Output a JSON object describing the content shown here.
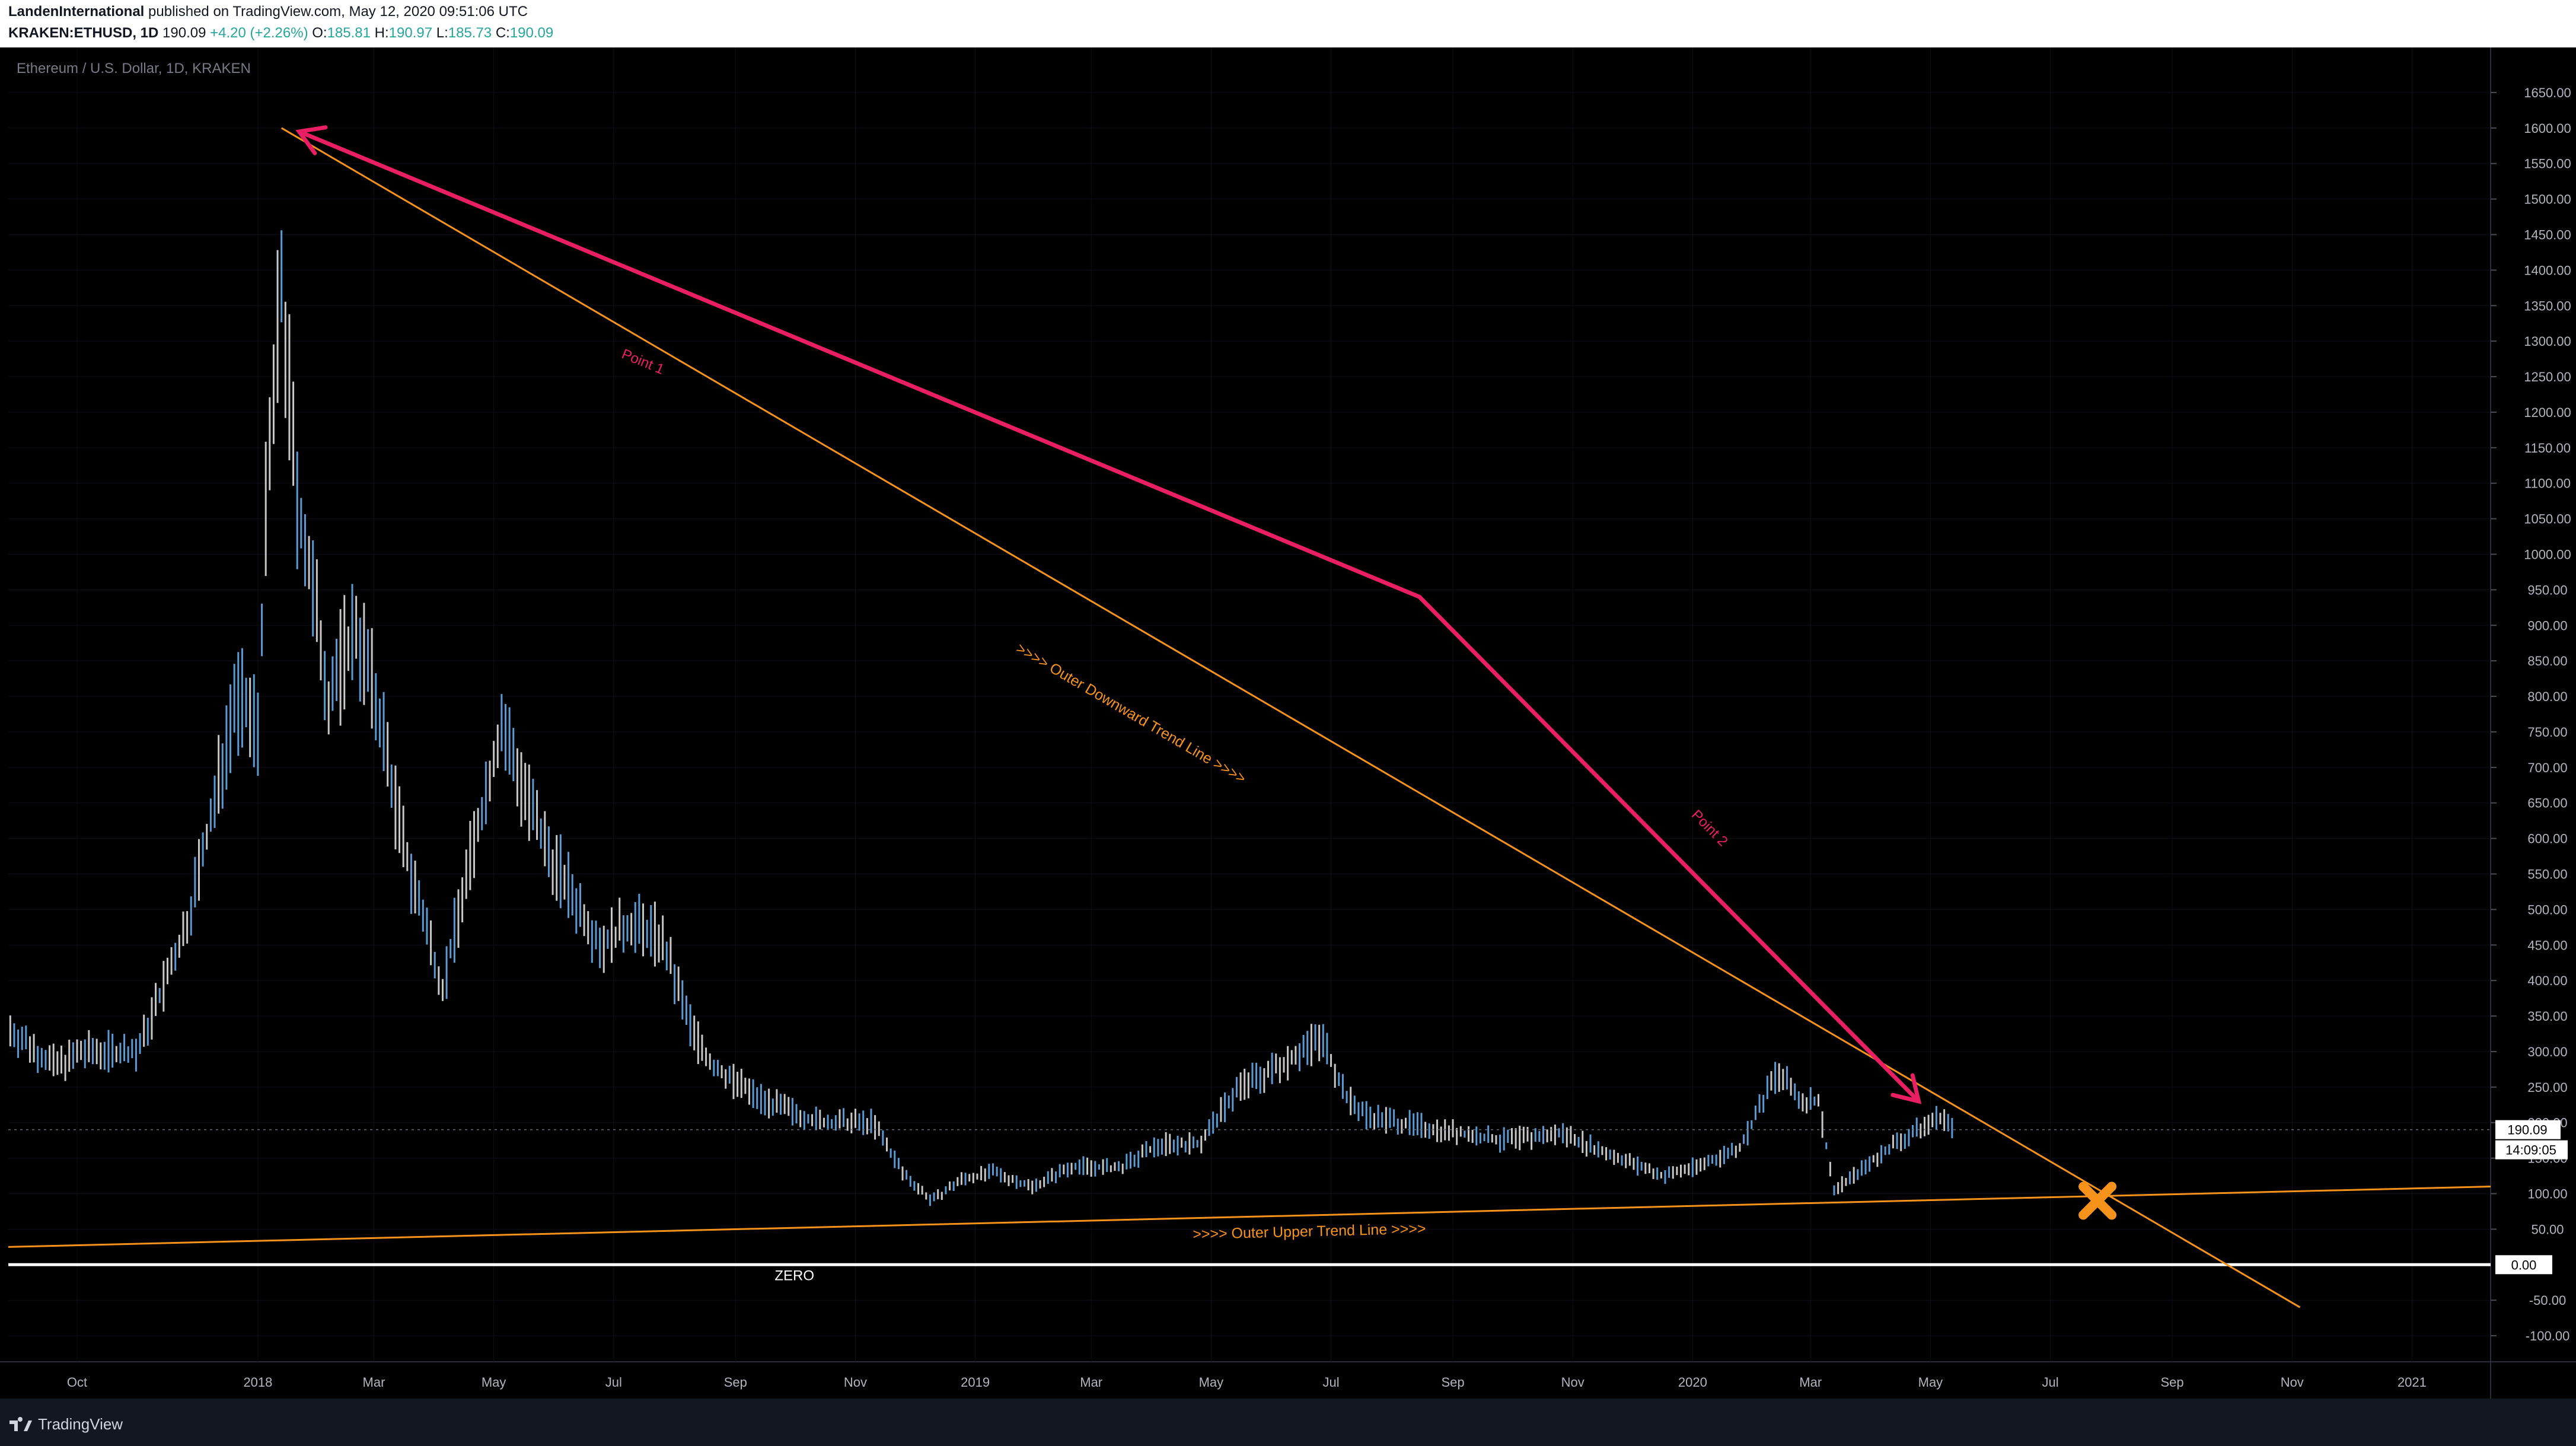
{
  "header": {
    "publisher": "LandenInternational",
    "published_text": "published on TradingView.com, May 12, 2020 09:51:06 UTC",
    "symbol": "KRAKEN:ETHUSD, 1D",
    "last": "190.09",
    "change": "+4.20 (+2.26%)",
    "o_label": "O:",
    "o_value": "185.81",
    "h_label": "H:",
    "h_value": "190.97",
    "l_label": "L:",
    "l_value": "185.73",
    "c_label": "C:",
    "c_value": "190.09"
  },
  "chart_title": "Ethereum / U.S. Dollar, 1D, KRAKEN",
  "footer": {
    "brand": "TradingView"
  },
  "colors": {
    "background": "#000000",
    "frame": "#131722",
    "candle_up": "#5b9bd5",
    "candle_down": "#c8c8c8",
    "trend_line": "#f7931a",
    "arrow": "#e91e63",
    "zero_line": "#ffffff",
    "axis_text": "#b2b5be"
  },
  "chart_data": {
    "type": "line",
    "x_tick_labels": [
      "Oct",
      "2018",
      "Mar",
      "May",
      "Jul",
      "Sep",
      "Nov",
      "2019",
      "Mar",
      "May",
      "Jul",
      "Sep",
      "Nov",
      "2020",
      "Mar",
      "May",
      "Jul",
      "Sep",
      "Nov",
      "2021"
    ],
    "y_tick_labels": [
      "1650.00",
      "1600.00",
      "1550.00",
      "1500.00",
      "1450.00",
      "1400.00",
      "1350.00",
      "1300.00",
      "1250.00",
      "1200.00",
      "1150.00",
      "1100.00",
      "1050.00",
      "1000.00",
      "950.00",
      "900.00",
      "850.00",
      "800.00",
      "750.00",
      "700.00",
      "650.00",
      "600.00",
      "550.00",
      "500.00",
      "450.00",
      "400.00",
      "350.00",
      "300.00",
      "250.00",
      "200.00",
      "150.00",
      "100.00",
      "50.00",
      "-50.00",
      "-100.00"
    ],
    "ylim": [
      -140,
      1680
    ],
    "xlim": [
      "2017-08-27",
      "2021-02-10"
    ],
    "series": [
      {
        "x": [
          "2017-08-28",
          "2017-09-20",
          "2017-10-05",
          "2017-11-01",
          "2017-11-25",
          "2017-12-10",
          "2017-12-20",
          "2018-01-01",
          "2018-01-05",
          "2018-01-13",
          "2018-01-20",
          "2018-02-06",
          "2018-02-20",
          "2018-03-05",
          "2018-03-15",
          "2018-04-05",
          "2018-04-15",
          "2018-05-05",
          "2018-05-25",
          "2018-06-10",
          "2018-06-25",
          "2018-07-10",
          "2018-07-25",
          "2018-08-10",
          "2018-08-20",
          "2018-09-10",
          "2018-09-25",
          "2018-10-15",
          "2018-11-10",
          "2018-11-25",
          "2018-12-10",
          "2018-12-25",
          "2019-01-10",
          "2019-01-30",
          "2019-02-20",
          "2019-03-15",
          "2019-04-05",
          "2019-04-25",
          "2019-05-15",
          "2019-05-30",
          "2019-06-15",
          "2019-06-26",
          "2019-07-10",
          "2019-07-20",
          "2019-08-05",
          "2019-08-25",
          "2019-09-15",
          "2019-09-25",
          "2019-10-15",
          "2019-10-28",
          "2019-11-15",
          "2019-11-25",
          "2019-12-17",
          "2020-01-05",
          "2020-01-25",
          "2020-02-13",
          "2020-02-25",
          "2020-03-05",
          "2020-03-13",
          "2020-03-25",
          "2020-04-10",
          "2020-04-25",
          "2020-05-07",
          "2020-05-12"
        ],
        "values": [
          330,
          280,
          300,
          300,
          470,
          650,
          800,
          760,
          1050,
          1380,
          1100,
          800,
          900,
          760,
          600,
          390,
          520,
          760,
          600,
          520,
          450,
          480,
          460,
          330,
          280,
          240,
          220,
          200,
          200,
          130,
          90,
          120,
          130,
          110,
          140,
          135,
          170,
          170,
          250,
          270,
          300,
          320,
          230,
          210,
          200,
          190,
          180,
          175,
          180,
          185,
          160,
          150,
          125,
          140,
          165,
          270,
          230,
          230,
          105,
          130,
          165,
          190,
          210,
          190
        ]
      }
    ],
    "last_price_label": "190.09",
    "countdown_label": "14:09:05",
    "zero_label": "0.00",
    "annotations": {
      "downtrend_label": ">>>> Outer Downward Trend Line >>>>",
      "uptrend_label": ">>>> Outer Upper Trend Line >>>>",
      "point1": "Point 1",
      "point2": "Point 2",
      "zero_text": "ZERO"
    },
    "lines": {
      "downtrend": {
        "from": [
          "2018-01-13",
          1600
        ],
        "to": [
          "2020-11-05",
          -60
        ]
      },
      "uptrend": {
        "from": [
          "2017-08-27",
          25
        ],
        "to": [
          "2021-02-10",
          110
        ]
      },
      "zero": 0,
      "cross_marker": [
        "2020-07-25",
        90
      ]
    },
    "arrows": {
      "points": [
        [
          "2018-01-22",
          1595
        ],
        [
          "2019-08-15",
          940
        ],
        [
          "2020-04-25",
          230
        ]
      ]
    }
  }
}
